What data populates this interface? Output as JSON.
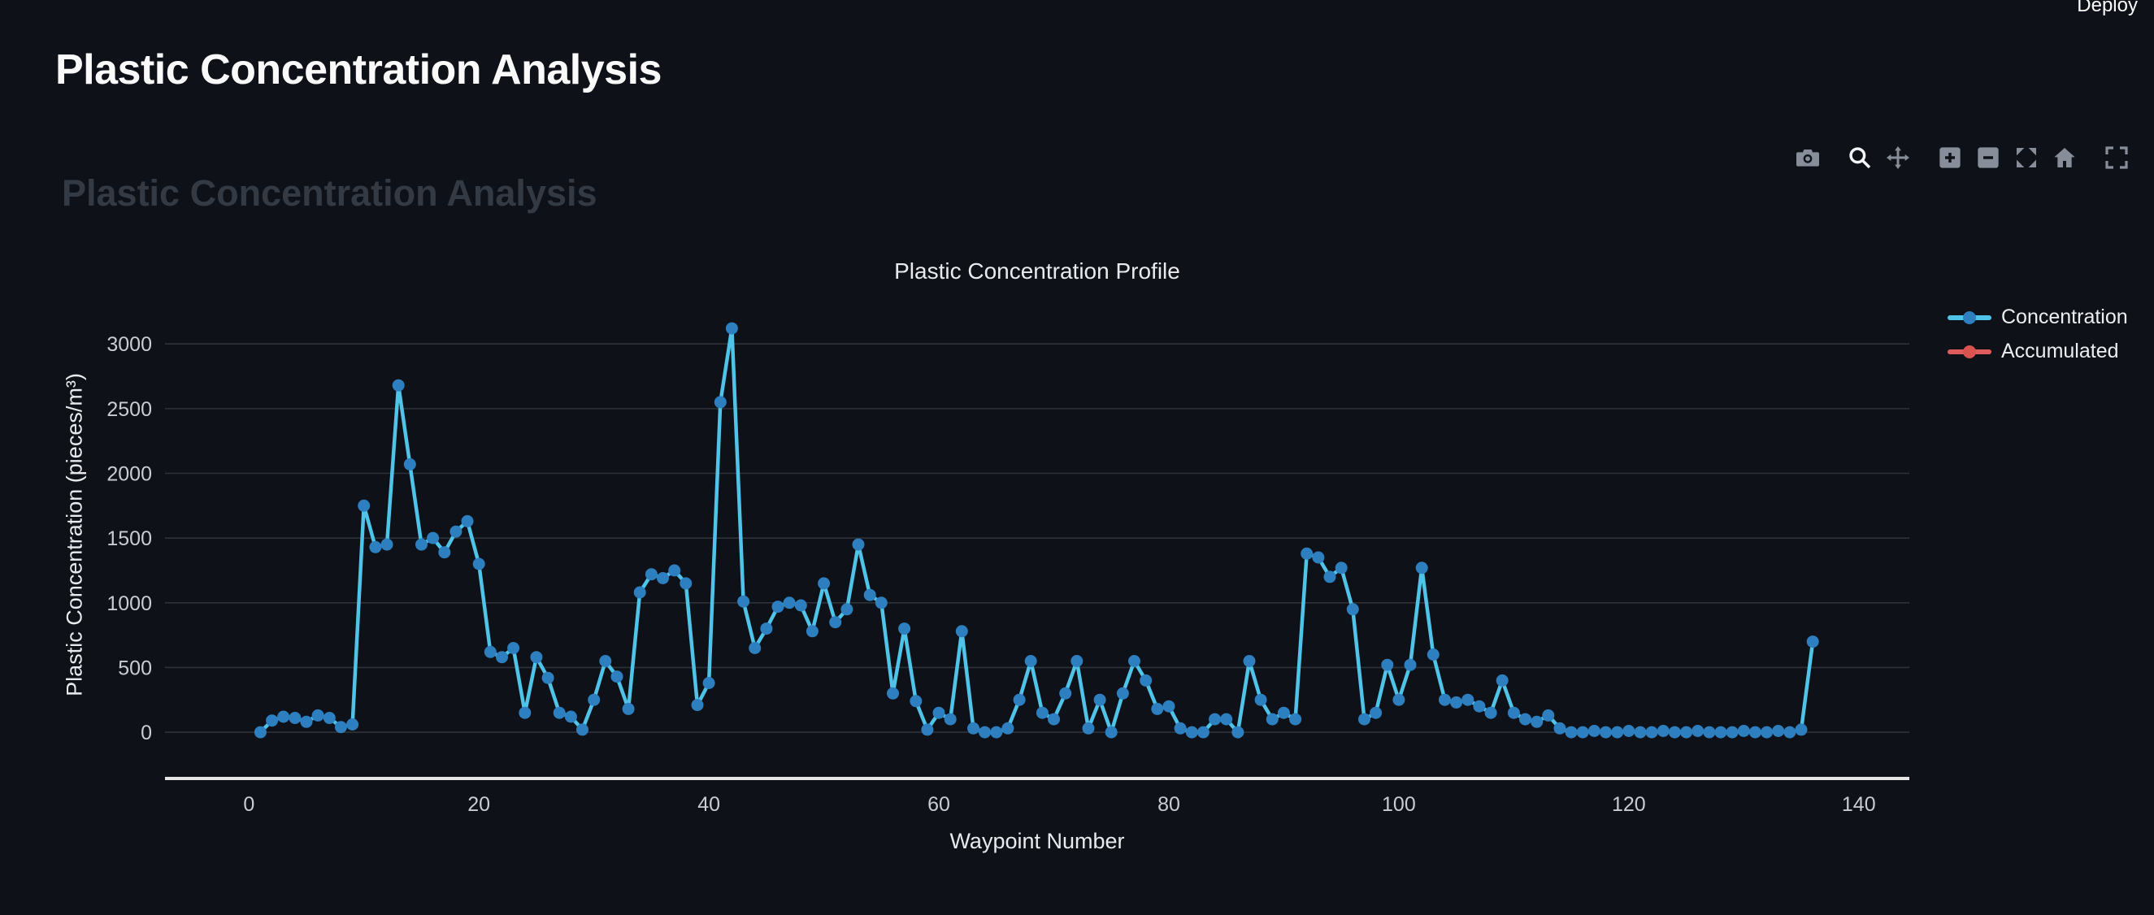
{
  "header": {
    "deploy_label": "Deploy"
  },
  "page": {
    "title": "Plastic Concentration Analysis",
    "ghost_heading": "Plastic Concentration Analysis"
  },
  "modebar": {
    "icons": [
      "camera-icon",
      "zoom-icon",
      "pan-icon",
      "zoom-in-icon",
      "zoom-out-icon",
      "autoscale-icon",
      "reset-axes-icon",
      "fullscreen-icon"
    ],
    "active_icon": "zoom-icon"
  },
  "colors": {
    "background": "#0e1117",
    "grid": "#2e333a",
    "axis_line": "#e6e6e6",
    "tick_text": "#c9ccd1",
    "title_text": "#fafafa",
    "ghost_text": "#343a44",
    "modebar_icon": "#878e9a",
    "modebar_icon_active": "#f3f5f8"
  },
  "chart_data": {
    "type": "line",
    "title": "Plastic Concentration Profile",
    "xlabel": "Waypoint Number",
    "ylabel": "Plastic Concentration (pieces/m³)",
    "xlim": [
      -7.3,
      144.4
    ],
    "ylim": [
      -370,
      3240
    ],
    "xticks": [
      0,
      20,
      40,
      60,
      80,
      100,
      120,
      140
    ],
    "yticks": [
      0,
      500,
      1000,
      1500,
      2000,
      2500,
      3000
    ],
    "grid": true,
    "legend_position": "right",
    "x_start": 1,
    "x_step": 1,
    "series": [
      {
        "name": "Concentration",
        "line_color": "#4fc3e8",
        "marker_color": "#2d7fbf",
        "values": [
          0,
          90,
          120,
          110,
          80,
          130,
          110,
          40,
          60,
          1750,
          1430,
          1450,
          2680,
          2070,
          1450,
          1500,
          1390,
          1550,
          1630,
          1300,
          620,
          580,
          650,
          150,
          580,
          420,
          150,
          120,
          20,
          250,
          550,
          430,
          180,
          1080,
          1220,
          1190,
          1250,
          1150,
          210,
          380,
          2550,
          3120,
          1010,
          650,
          800,
          970,
          1000,
          980,
          780,
          1150,
          850,
          950,
          1450,
          1060,
          1000,
          300,
          800,
          240,
          20,
          150,
          100,
          780,
          30,
          0,
          0,
          30,
          250,
          550,
          150,
          100,
          300,
          550,
          30,
          250,
          0,
          300,
          550,
          400,
          180,
          200,
          30,
          0,
          0,
          100,
          100,
          0,
          550,
          250,
          100,
          150,
          100,
          1380,
          1350,
          1200,
          1270,
          950,
          100,
          150,
          520,
          250,
          520,
          1270,
          600,
          250,
          230,
          250,
          200,
          150,
          400,
          150,
          100,
          80,
          130,
          30,
          0,
          0,
          10,
          0,
          0,
          10,
          0,
          0,
          10,
          0,
          0,
          10,
          0,
          0,
          0,
          10,
          0,
          0,
          10,
          0,
          20,
          700
        ]
      },
      {
        "name": "Accumulated",
        "line_color": "#e05c5c",
        "marker_color": "#d9534f",
        "values": []
      }
    ]
  }
}
